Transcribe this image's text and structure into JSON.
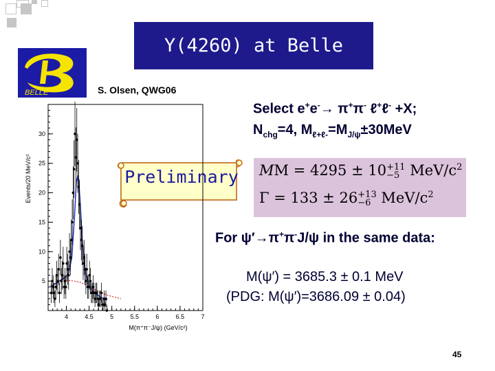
{
  "slide": {
    "title": "Y(4260) at Belle",
    "logo_text": "BELLE",
    "author": "S. Olsen, QWG06",
    "select_line1_a": "Select e",
    "select_line1_sup1": "+",
    "select_line1_b": "e",
    "select_line1_sup2": "-",
    "select_arrow": "→",
    "select_line1_c": " π",
    "select_line1_sup3": "+",
    "select_line1_d": "π",
    "select_line1_sup4": "-",
    "select_line1_e": " ℓ",
    "select_line1_sup5": "+",
    "select_line1_f": "ℓ",
    "select_line1_sup6": "-",
    "select_line1_g": " +X;",
    "select_line2_a": "N",
    "select_line2_sub1": "chg",
    "select_line2_b": "=4, M",
    "select_line2_sub2": "ℓ+ℓ-",
    "select_line2_c": "=M",
    "select_line2_sub3": "J/ψ",
    "select_line2_d": "±30MeV",
    "preliminary": "Preliminary",
    "formula_m_a": "M = 4295 ± 10",
    "formula_m_sup": "+11",
    "formula_m_sub": "−5",
    "formula_m_b": " MeV/c",
    "formula_m_c": "2",
    "formula_g_a": "Γ = 133 ± 26",
    "formula_g_sup": "+13",
    "formula_g_sub": "−6",
    "formula_g_b": " MeV/c",
    "formula_g_c": "2",
    "for_a": "For ψ′",
    "for_arrow": "→",
    "for_b": "π",
    "for_sup1": "+",
    "for_c": "π",
    "for_sup2": "-",
    "for_d": "J/ψ in the same data:",
    "mass_line1": "M(ψ′) = 3685.3 ± 0.1 MeV",
    "mass_line2": "(PDG:  M(ψ′)=3686.09 ± 0.04)",
    "page_number": "45"
  },
  "colors": {
    "title_bg": "#1e1a8c",
    "logo_bg": "#1c1ba6",
    "logo_yellow": "#f5e400",
    "text_dark": "#000033",
    "prelim_text": "#1b1aa0",
    "scroll_fill": "#ffffc8",
    "scroll_border": "#c06a1a",
    "formula_bg": "#dcc3dc",
    "fit_line": "#2030c0",
    "bg_line": "#d02020",
    "deco_square": "#c6c6c6"
  },
  "chart_data": {
    "type": "scatter",
    "xlabel": "M(π⁺π⁻J/ψ) (GeV/c²)",
    "ylabel": "Events/20 MeV/c²",
    "xlim": [
      3.6,
      7.0
    ],
    "ylim": [
      0,
      35
    ],
    "x_ticks": [
      "4",
      "4.5",
      "5",
      "5.5",
      "6",
      "6.5",
      "7"
    ],
    "y_ticks": [
      "5",
      "10",
      "15",
      "20",
      "25",
      "30"
    ],
    "grid": false,
    "series": [
      {
        "x": [
          3.67,
          3.69,
          3.71,
          3.73,
          3.75,
          3.77,
          3.79,
          3.81,
          3.83,
          3.85,
          3.87,
          3.89,
          3.91,
          3.93,
          3.95,
          3.97,
          3.99,
          4.01,
          4.03,
          4.05,
          4.07,
          4.09,
          4.11,
          4.13,
          4.15,
          4.17,
          4.19,
          4.21,
          4.23,
          4.25,
          4.27,
          4.29,
          4.31,
          4.33,
          4.35,
          4.37,
          4.39,
          4.41,
          4.43,
          4.45,
          4.47,
          4.49,
          4.51,
          4.53,
          4.55,
          4.57,
          4.59,
          4.61,
          4.63,
          4.65,
          4.67,
          4.69,
          4.71,
          4.73,
          4.75,
          4.77,
          4.79,
          4.81,
          4.83,
          4.85,
          4.87,
          4.89
        ],
        "values": [
          3,
          5,
          4,
          3,
          2,
          4,
          6,
          5,
          7,
          3,
          9,
          5,
          6,
          8,
          4,
          5,
          4,
          8,
          7,
          6,
          10,
          9,
          12,
          15,
          20,
          24,
          30,
          26,
          29,
          25,
          21,
          18,
          14,
          12,
          11,
          8,
          9,
          7,
          5,
          7,
          4,
          4,
          6,
          5,
          3,
          3,
          4,
          3,
          2,
          3,
          3,
          2,
          1,
          2,
          2,
          3,
          1,
          1,
          2,
          1,
          2,
          0
        ]
      }
    ],
    "fit_curve": {
      "x": [
        3.65,
        3.8,
        3.95,
        4.05,
        4.12,
        4.18,
        4.22,
        4.26,
        4.3,
        4.35,
        4.42,
        4.5,
        4.6,
        4.75,
        4.9
      ],
      "values": [
        4,
        4.8,
        5.5,
        6.2,
        9,
        16,
        22,
        23,
        19,
        12,
        6.5,
        4.3,
        3.1,
        2.3,
        1.8
      ]
    },
    "background_curve": {
      "x": [
        3.65,
        3.9,
        4.1,
        4.3,
        4.5,
        4.7,
        4.9,
        5.2
      ],
      "values": [
        4.2,
        5,
        5.1,
        4.8,
        4.1,
        3.3,
        2.6,
        2
      ]
    }
  }
}
